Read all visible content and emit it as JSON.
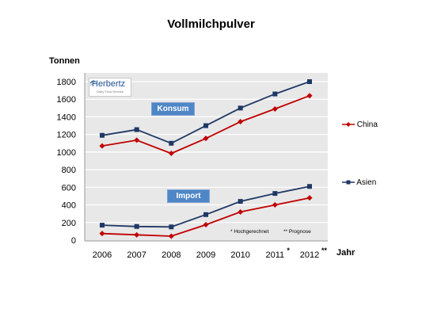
{
  "title": "Vollmilchpulver",
  "colors": {
    "plot_bg": "#e8e8e8",
    "grid": "#ffffff",
    "china": "#c00000",
    "asien": "#1f3864",
    "label_box": "#4f86c6"
  },
  "logo": {
    "name": "Herbertz",
    "sub": "Dairy Food Service"
  },
  "labels": {
    "konsum": "Konsum",
    "import": "Import"
  },
  "footnotes": {
    "hoch": "* Hochgerechnet",
    "prog": "** Prognose"
  },
  "chart_data": {
    "type": "line",
    "ylabel": "Tonnen",
    "xlabel": "Jahr",
    "ylim": [
      0,
      1800
    ],
    "yticks": [
      0,
      200,
      400,
      600,
      800,
      1000,
      1200,
      1400,
      1600,
      1800
    ],
    "grid": true,
    "legend": "right",
    "categories": [
      "2006",
      "2007",
      "2008",
      "2009",
      "2010",
      "2011",
      "2012"
    ],
    "category_marks": [
      "",
      "",
      "",
      "",
      "",
      "*",
      "**"
    ],
    "series": [
      {
        "name": "China",
        "group": "Konsum",
        "color": "#c00000",
        "marker": "diamond",
        "values": [
          1070,
          1135,
          985,
          1155,
          1345,
          1490,
          1640
        ]
      },
      {
        "name": "Asien",
        "group": "Konsum",
        "color": "#1f3864",
        "marker": "square",
        "values": [
          1190,
          1255,
          1100,
          1300,
          1500,
          1660,
          1800
        ]
      },
      {
        "name": "China",
        "group": "Import",
        "color": "#c00000",
        "marker": "diamond",
        "values": [
          75,
          60,
          45,
          175,
          320,
          400,
          480
        ]
      },
      {
        "name": "Asien",
        "group": "Import",
        "color": "#1f3864",
        "marker": "square",
        "values": [
          170,
          155,
          150,
          290,
          440,
          530,
          610
        ]
      }
    ]
  }
}
